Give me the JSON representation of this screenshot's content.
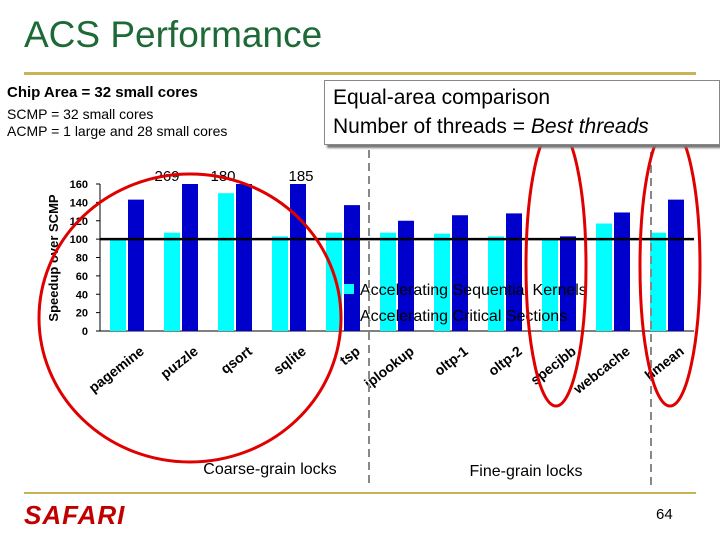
{
  "slide": {
    "title": "ACS Performance",
    "chip_area": "Chip Area = 32 small cores",
    "scmp_line": "SCMP = 32 small cores",
    "acmp_line": "ACMP =  1 large and 28 small cores",
    "comparison_line1": "Equal-area comparison",
    "comparison_line2_prefix": "Number of threads = ",
    "comparison_line2_emph": "Best threads",
    "coarse_label": "Coarse-grain locks",
    "fine_label": "Fine-grain locks",
    "brand": "SAFARI",
    "page_number": "64"
  },
  "colors": {
    "title": "#1e6a37",
    "series_sequential": "#00ffff",
    "series_critical": "#0000cc",
    "circle": "#e00000",
    "rule": "#c8b25a"
  },
  "chart_data": {
    "type": "bar",
    "ylabel": "Speedup over SCMP",
    "ylim": [
      0,
      160
    ],
    "yticks": [
      0,
      20,
      40,
      60,
      80,
      100,
      120,
      140,
      160
    ],
    "baseline": 100,
    "categories": [
      "pagemine",
      "puzzle",
      "qsort",
      "sqlite",
      "tsp",
      "iplookup",
      "oltp-1",
      "oltp-2",
      "specjbb",
      "webcache",
      "hmean"
    ],
    "series": [
      {
        "name": "Accelerating Sequential Kernels",
        "values": [
          100,
          107,
          150,
          103,
          107,
          107,
          106,
          103,
          100,
          117,
          107
        ]
      },
      {
        "name": "Accelerating Critical Sections",
        "values": [
          143,
          160,
          160,
          160,
          137,
          120,
          126,
          128,
          103,
          129,
          143
        ]
      }
    ],
    "overflow_labels": [
      {
        "category": "puzzle",
        "text": "269"
      },
      {
        "category": "qsort",
        "text": "180"
      },
      {
        "category": "sqlite",
        "text": "185"
      }
    ]
  }
}
